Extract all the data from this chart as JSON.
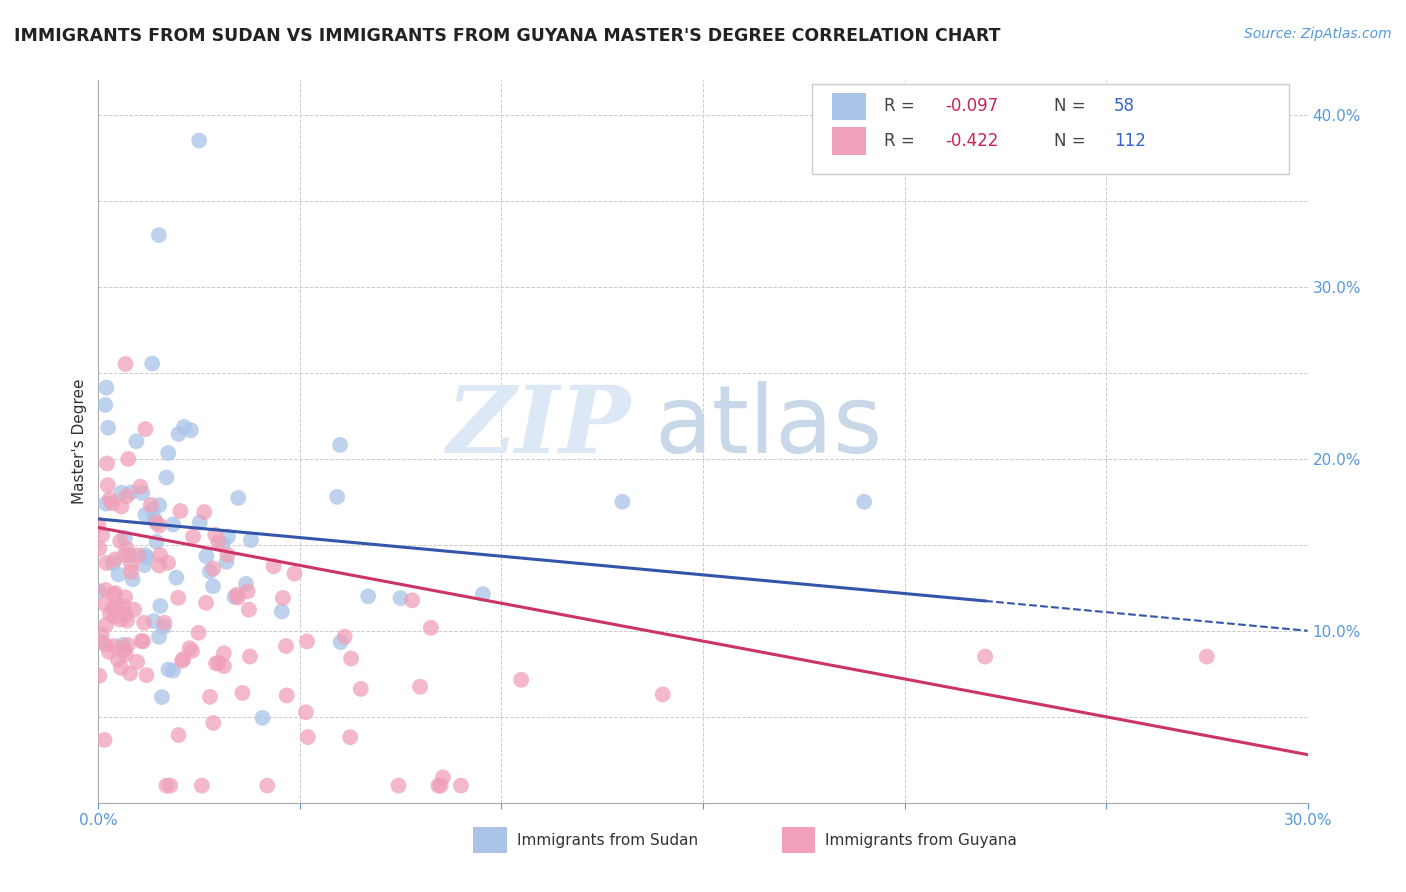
{
  "title": "IMMIGRANTS FROM SUDAN VS IMMIGRANTS FROM GUYANA MASTER'S DEGREE CORRELATION CHART",
  "source_text": "Source: ZipAtlas.com",
  "ylabel": "Master's Degree",
  "xlim": [
    0.0,
    0.3
  ],
  "ylim": [
    0.0,
    0.42
  ],
  "sudan_R": -0.097,
  "sudan_N": 58,
  "guyana_R": -0.422,
  "guyana_N": 112,
  "sudan_color": "#aac4e8",
  "guyana_color": "#f0a0b8",
  "sudan_line_color": "#3355aa",
  "guyana_line_color": "#cc3366",
  "background_color": "#ffffff",
  "grid_color": "#cccccc",
  "watermark_zip": "ZIP",
  "watermark_atlas": "atlas",
  "legend_sudan_label": "Immigrants from Sudan",
  "legend_guyana_label": "Immigrants from Guyana"
}
